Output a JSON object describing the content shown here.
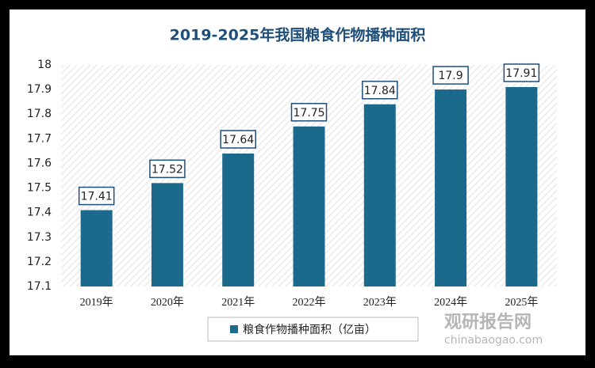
{
  "chart_data": {
    "type": "bar",
    "title": "2019-2025年我国粮食作物播种面积",
    "categories": [
      "2019年",
      "2020年",
      "2021年",
      "2022年",
      "2023年",
      "2024年",
      "2025年"
    ],
    "series": [
      {
        "name": "粮食作物播种面积（亿亩）",
        "color": "#1b6a8c",
        "values": [
          17.41,
          17.52,
          17.64,
          17.75,
          17.84,
          17.9,
          17.91
        ]
      }
    ],
    "ylim": [
      17.1,
      18
    ],
    "yticks": [
      17.1,
      17.2,
      17.3,
      17.4,
      17.5,
      17.6,
      17.7,
      17.8,
      17.9,
      18
    ],
    "grid": false,
    "legend": "bottom"
  },
  "watermark": {
    "name": "观研报告网",
    "url": "chinabaogao.com"
  }
}
